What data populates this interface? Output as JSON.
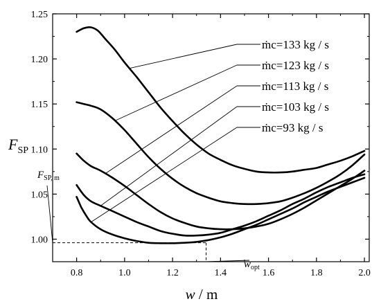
{
  "chart_data": {
    "type": "line",
    "xlabel": "w / m",
    "ylabel": "F_SP",
    "xlim": [
      0.7,
      2.02
    ],
    "ylim": [
      0.975,
      1.25
    ],
    "x_ticks": [
      "0.8",
      "1.0",
      "1.2",
      "1.4",
      "1.6",
      "1.8",
      "2.0"
    ],
    "y_ticks": [
      "1.00",
      "1.05",
      "1.10",
      "1.15",
      "1.20",
      "1.25"
    ],
    "grid": false,
    "series": [
      {
        "name": "ṁc=133 kg / s",
        "x": [
          0.8,
          0.83,
          0.86,
          0.89,
          0.92,
          0.96,
          1.0,
          1.05,
          1.1,
          1.15,
          1.2,
          1.25,
          1.3,
          1.35,
          1.4,
          1.45,
          1.5,
          1.55,
          1.6,
          1.65,
          1.7,
          1.75,
          1.8,
          1.85,
          1.9,
          1.95,
          2.0
        ],
        "y": [
          1.23,
          1.234,
          1.235,
          1.231,
          1.222,
          1.21,
          1.196,
          1.18,
          1.163,
          1.146,
          1.131,
          1.117,
          1.105,
          1.095,
          1.088,
          1.082,
          1.078,
          1.075,
          1.074,
          1.074,
          1.075,
          1.077,
          1.079,
          1.083,
          1.087,
          1.092,
          1.098
        ]
      },
      {
        "name": "ṁc=123 kg / s",
        "x": [
          0.8,
          0.83,
          0.86,
          0.9,
          0.95,
          1.0,
          1.05,
          1.1,
          1.15,
          1.2,
          1.25,
          1.3,
          1.35,
          1.4,
          1.45,
          1.5,
          1.55,
          1.6,
          1.65,
          1.7,
          1.75,
          1.8,
          1.85,
          1.9,
          1.95,
          2.0
        ],
        "y": [
          1.152,
          1.15,
          1.148,
          1.144,
          1.134,
          1.121,
          1.106,
          1.091,
          1.078,
          1.067,
          1.058,
          1.051,
          1.046,
          1.042,
          1.04,
          1.039,
          1.039,
          1.04,
          1.042,
          1.046,
          1.051,
          1.057,
          1.064,
          1.072,
          1.082,
          1.094
        ]
      },
      {
        "name": "ṁc=113 kg / s",
        "x": [
          0.8,
          0.83,
          0.86,
          0.9,
          0.95,
          1.0,
          1.05,
          1.1,
          1.15,
          1.2,
          1.25,
          1.3,
          1.35,
          1.4,
          1.45,
          1.5,
          1.55,
          1.6,
          1.65,
          1.7,
          1.75,
          1.8,
          1.85,
          1.9,
          1.95,
          2.0
        ],
        "y": [
          1.095,
          1.087,
          1.081,
          1.076,
          1.068,
          1.059,
          1.049,
          1.039,
          1.03,
          1.023,
          1.018,
          1.014,
          1.012,
          1.011,
          1.011,
          1.012,
          1.014,
          1.017,
          1.022,
          1.028,
          1.035,
          1.043,
          1.051,
          1.059,
          1.067,
          1.076
        ]
      },
      {
        "name": "ṁc=103 kg / s",
        "x": [
          0.8,
          0.83,
          0.86,
          0.9,
          0.95,
          1.0,
          1.05,
          1.1,
          1.15,
          1.2,
          1.25,
          1.3,
          1.35,
          1.4,
          1.45,
          1.5,
          1.55,
          1.6,
          1.65,
          1.7,
          1.75,
          1.8,
          1.85,
          1.9,
          1.95,
          2.0
        ],
        "y": [
          1.06,
          1.049,
          1.042,
          1.037,
          1.031,
          1.025,
          1.019,
          1.014,
          1.009,
          1.006,
          1.004,
          1.004,
          1.005,
          1.007,
          1.011,
          1.015,
          1.02,
          1.026,
          1.032,
          1.039,
          1.045,
          1.052,
          1.058,
          1.063,
          1.068,
          1.072
        ]
      },
      {
        "name": "ṁc=93 kg / s",
        "x": [
          0.8,
          0.82,
          0.84,
          0.86,
          0.9,
          0.95,
          1.0,
          1.05,
          1.1,
          1.15,
          1.2,
          1.25,
          1.3,
          1.35,
          1.4,
          1.45,
          1.5,
          1.55,
          1.6,
          1.65,
          1.7,
          1.75,
          1.8,
          1.85,
          1.9,
          1.95,
          2.0
        ],
        "y": [
          1.047,
          1.035,
          1.026,
          1.019,
          1.011,
          1.005,
          1.001,
          0.998,
          0.996,
          0.9955,
          0.9955,
          0.996,
          0.997,
          0.999,
          1.002,
          1.006,
          1.011,
          1.016,
          1.022,
          1.028,
          1.034,
          1.041,
          1.047,
          1.053,
          1.058,
          1.063,
          1.068
        ]
      }
    ],
    "annotations": {
      "fsp_min_label": "F_SP, m",
      "fsp_min_value": 0.996,
      "w_opt_label": "w_opt",
      "w_opt_value": 1.34,
      "legend_labels": [
        "ṁc=133 kg / s",
        "ṁc=123 kg / s",
        "ṁc=113 kg / s",
        "ṁc=103 kg / s",
        "ṁc=93 kg / s"
      ]
    }
  }
}
